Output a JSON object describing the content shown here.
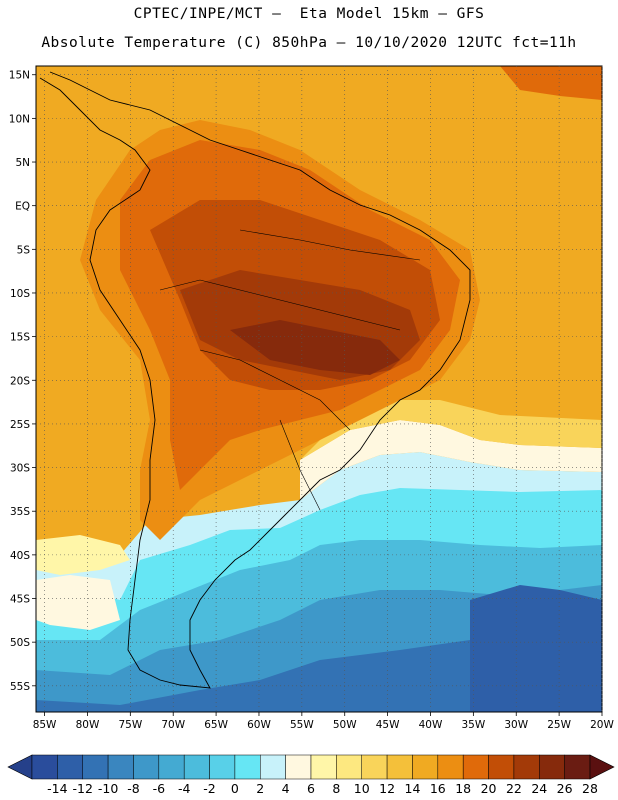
{
  "header": {
    "title_line_1": "CPTEC/INPE/MCT –  Eta Model 15km – GFS",
    "title_line_2": "Absolute Temperature (C) 850hPa – 10/10/2020 12UTC fct=11h"
  },
  "map": {
    "region": "South America",
    "lat_range": [
      -58,
      16
    ],
    "lon_range": [
      -86,
      -20
    ],
    "lat_ticks": [
      "15N",
      "10N",
      "5N",
      "EQ",
      "5S",
      "10S",
      "15S",
      "20S",
      "25S",
      "30S",
      "35S",
      "40S",
      "45S",
      "50S",
      "55S"
    ],
    "lat_values": [
      15,
      10,
      5,
      0,
      -5,
      -10,
      -15,
      -20,
      -25,
      -30,
      -35,
      -40,
      -45,
      -50,
      -55
    ],
    "lon_ticks": [
      "85W",
      "80W",
      "75W",
      "70W",
      "65W",
      "60W",
      "55W",
      "50W",
      "45W",
      "40W",
      "35W",
      "30W",
      "25W",
      "20W"
    ],
    "lon_values": [
      -85,
      -80,
      -75,
      -70,
      -65,
      -60,
      -55,
      -50,
      -45,
      -40,
      -35,
      -30,
      -25,
      -20
    ],
    "gridlines": "dotted"
  },
  "colorbar": {
    "labels": [
      "-14",
      "-12",
      "-10",
      "-8",
      "-6",
      "-4",
      "-2",
      "0",
      "2",
      "4",
      "6",
      "8",
      "10",
      "12",
      "14",
      "16",
      "18",
      "20",
      "22",
      "24",
      "26",
      "28"
    ],
    "colors": [
      "#2a4d9c",
      "#2e5fa8",
      "#3372b4",
      "#3a86bf",
      "#3e98c9",
      "#44aad2",
      "#4cbcdc",
      "#58d0e8",
      "#66e6f4",
      "#c8f2fa",
      "#fff8e0",
      "#fff6a8",
      "#fde880",
      "#f9d45a",
      "#f4c03a",
      "#f0aa22",
      "#ec8e12",
      "#e06a0a",
      "#c24e06",
      "#a33a08",
      "#862a0c",
      "#6a1c12"
    ],
    "under_color": "#25408a",
    "over_color": "#5a1010"
  }
}
